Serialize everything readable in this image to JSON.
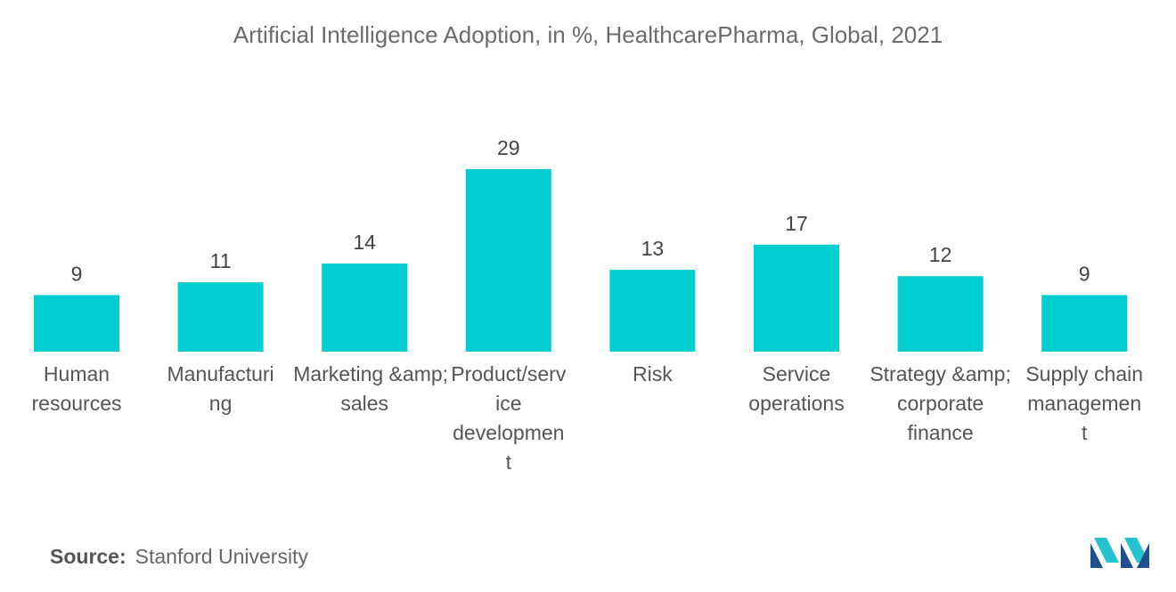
{
  "chart_data": {
    "type": "bar",
    "title": "Artificial Intelligence Adoption, in %, HealthcarePharma, Global, 2021",
    "categories": [
      [
        "Human",
        "resources"
      ],
      [
        "Manufacturi",
        "ng"
      ],
      [
        "Marketing &amp;",
        "sales"
      ],
      [
        "Product/serv",
        "ice",
        "developmen",
        "t"
      ],
      [
        "Risk"
      ],
      [
        "Service",
        "operations"
      ],
      [
        "Strategy &amp;",
        "corporate",
        "finance"
      ],
      [
        "Supply chain",
        "managemen",
        "t"
      ]
    ],
    "values": [
      9,
      11,
      14,
      29,
      13,
      17,
      12,
      9
    ],
    "ylim": [
      0,
      29
    ],
    "xlabel": "",
    "ylabel": "",
    "grid": false,
    "colors": {
      "bar": "#00CED1",
      "value_label": "#444444",
      "category_label": "#555555"
    }
  },
  "source": {
    "key": "Source:",
    "value": "Stanford University"
  },
  "logo": {
    "icon": "mordor-intelligence-logo-icon",
    "colors": [
      "#1f4f8c",
      "#27c4d0"
    ]
  }
}
